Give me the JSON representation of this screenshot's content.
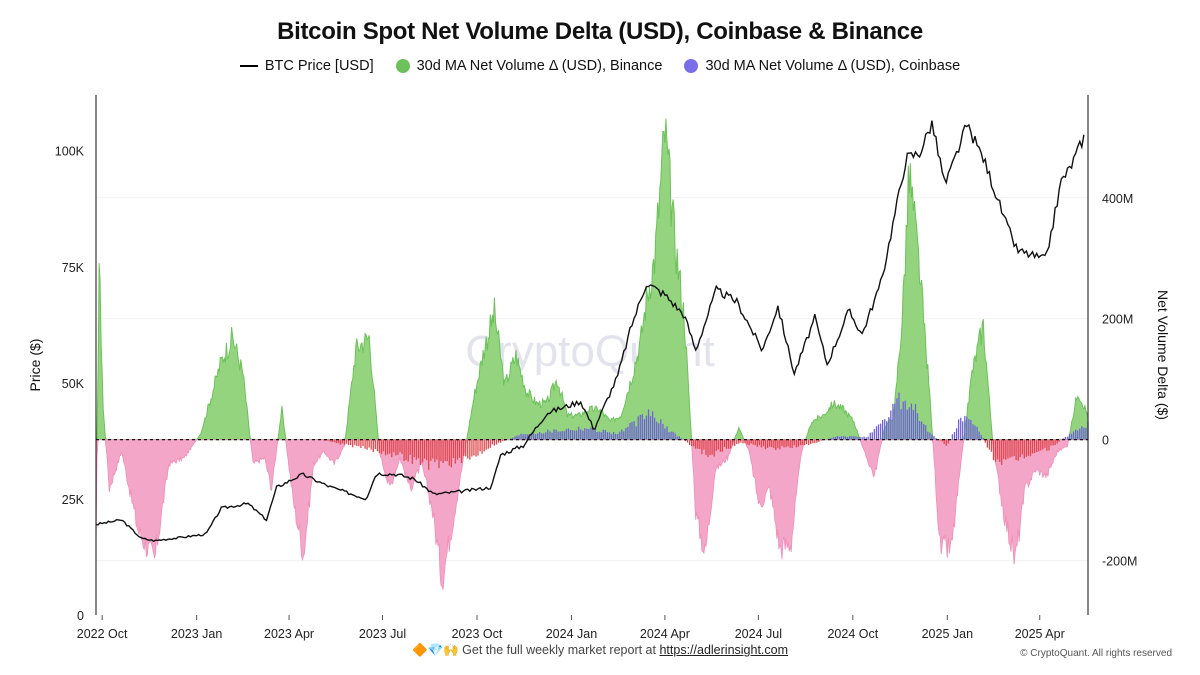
{
  "title": "Bitcoin Spot Net Volume Delta (USD), Coinbase & Binance",
  "legend": [
    {
      "label": "BTC Price [USD]",
      "icon": "line",
      "color": "#111111"
    },
    {
      "label": "30d MA Net Volume Δ (USD), Binance",
      "icon": "dot",
      "color": "#6cc15a"
    },
    {
      "label": "30d MA Net Volume Δ (USD), Coinbase",
      "icon": "dot",
      "color": "#7a6de8"
    }
  ],
  "watermark": "CryptoQuant",
  "footer": {
    "emoji": "🔶💎🙌",
    "text": "Get the full weekly market report at",
    "link": "https://adlerinsight.com"
  },
  "copyright": "© CryptoQuant. All rights reserved",
  "colors": {
    "price": "#111111",
    "binance_pos": "#6cc15a",
    "binance_pos_fill": "#94d47f",
    "binance_neg": "#f4a6c8",
    "coinbase_pos": "#6f62d8",
    "coinbase_neg": "#e0474c"
  },
  "chart_data": {
    "type": "area",
    "x_tick_labels": [
      "2022 Oct",
      "2023 Jan",
      "2023 Apr",
      "2023 Jul",
      "2023 Oct",
      "2024 Jan",
      "2024 Apr",
      "2024 Jul",
      "2024 Oct",
      "2025 Jan",
      "2025 Apr"
    ],
    "y_left": {
      "label": "Price ($)",
      "ticks": [
        0,
        25000,
        50000,
        75000,
        100000
      ],
      "tick_labels": [
        "0",
        "25K",
        "50K",
        "75K",
        "100K"
      ],
      "range": [
        0,
        112000
      ]
    },
    "y_right": {
      "label": "Net Volume Delta ($)",
      "ticks": [
        -200000000,
        0,
        200000000,
        400000000
      ],
      "tick_labels": [
        "-200M",
        "0",
        "200M",
        "400M"
      ],
      "range": [
        -290000000,
        570000000
      ]
    },
    "x_range": [
      "2022-09-25",
      "2025-05-18"
    ],
    "zero_line": "dashed",
    "series": [
      {
        "name": "BTC Price [USD]",
        "axis": "left",
        "x": [
          "2022-09-25",
          "2022-10-20",
          "2022-11-08",
          "2022-11-21",
          "2022-12-20",
          "2023-01-10",
          "2023-01-25",
          "2023-02-20",
          "2023-03-10",
          "2023-03-20",
          "2023-04-14",
          "2023-05-10",
          "2023-06-15",
          "2023-06-25",
          "2023-07-15",
          "2023-08-01",
          "2023-08-20",
          "2023-09-15",
          "2023-10-15",
          "2023-10-24",
          "2023-11-15",
          "2023-12-08",
          "2024-01-10",
          "2024-01-23",
          "2024-02-15",
          "2024-02-28",
          "2024-03-14",
          "2024-04-01",
          "2024-04-20",
          "2024-05-01",
          "2024-05-21",
          "2024-06-10",
          "2024-07-05",
          "2024-07-20",
          "2024-08-05",
          "2024-08-25",
          "2024-09-06",
          "2024-09-27",
          "2024-10-10",
          "2024-10-29",
          "2024-11-12",
          "2024-11-22",
          "2024-12-05",
          "2024-12-17",
          "2024-12-30",
          "2025-01-20",
          "2025-02-05",
          "2025-02-27",
          "2025-03-10",
          "2025-04-07",
          "2025-04-22",
          "2025-05-01",
          "2025-05-15"
        ],
        "values": [
          19500,
          20500,
          16500,
          16000,
          16800,
          17400,
          23000,
          24000,
          20500,
          27500,
          30300,
          27700,
          25000,
          30500,
          30300,
          29300,
          26000,
          26600,
          27500,
          34500,
          36500,
          43500,
          46000,
          40000,
          51500,
          62000,
          71500,
          69000,
          64500,
          57000,
          70000,
          67500,
          57000,
          66500,
          52000,
          64000,
          54000,
          65500,
          60500,
          72000,
          87500,
          98500,
          99500,
          106000,
          92500,
          105500,
          98500,
          84500,
          78500,
          76500,
          93500,
          96500,
          103500
        ]
      },
      {
        "name": "30d MA Net Volume Δ (USD), Binance",
        "axis": "right",
        "x": [
          "2022-09-25",
          "2022-09-28",
          "2022-10-02",
          "2022-10-08",
          "2022-10-20",
          "2022-11-05",
          "2022-11-21",
          "2022-12-05",
          "2022-12-20",
          "2023-01-05",
          "2023-01-15",
          "2023-01-25",
          "2023-02-05",
          "2023-02-15",
          "2023-02-25",
          "2023-03-08",
          "2023-03-15",
          "2023-03-25",
          "2023-04-05",
          "2023-04-15",
          "2023-04-25",
          "2023-05-05",
          "2023-05-15",
          "2023-05-25",
          "2023-06-05",
          "2023-06-18",
          "2023-06-28",
          "2023-07-08",
          "2023-07-18",
          "2023-07-28",
          "2023-08-08",
          "2023-08-18",
          "2023-08-28",
          "2023-09-08",
          "2023-09-18",
          "2023-09-28",
          "2023-10-08",
          "2023-10-18",
          "2023-10-28",
          "2023-11-08",
          "2023-11-18",
          "2023-11-28",
          "2023-12-08",
          "2023-12-18",
          "2023-12-28",
          "2024-01-08",
          "2024-01-18",
          "2024-01-28",
          "2024-02-08",
          "2024-02-18",
          "2024-02-28",
          "2024-03-08",
          "2024-03-14",
          "2024-03-22",
          "2024-04-01",
          "2024-04-10",
          "2024-04-20",
          "2024-05-01",
          "2024-05-10",
          "2024-05-20",
          "2024-06-01",
          "2024-06-12",
          "2024-06-22",
          "2024-07-02",
          "2024-07-12",
          "2024-07-22",
          "2024-08-02",
          "2024-08-12",
          "2024-08-22",
          "2024-09-02",
          "2024-09-12",
          "2024-09-22",
          "2024-10-02",
          "2024-10-12",
          "2024-10-22",
          "2024-11-01",
          "2024-11-10",
          "2024-11-18",
          "2024-11-25",
          "2024-12-05",
          "2024-12-15",
          "2024-12-25",
          "2025-01-05",
          "2025-01-15",
          "2025-01-25",
          "2025-02-05",
          "2025-02-15",
          "2025-02-25",
          "2025-03-08",
          "2025-03-18",
          "2025-03-28",
          "2025-04-08",
          "2025-04-18",
          "2025-04-28",
          "2025-05-08",
          "2025-05-18"
        ],
        "values": [
          -200000000,
          300000000,
          50000000,
          -80000000,
          -20000000,
          -150000000,
          -200000000,
          -40000000,
          -30000000,
          10000000,
          70000000,
          130000000,
          170000000,
          110000000,
          -40000000,
          -30000000,
          -80000000,
          50000000,
          -100000000,
          -190000000,
          -40000000,
          -20000000,
          -40000000,
          -10000000,
          150000000,
          170000000,
          -20000000,
          -80000000,
          -30000000,
          -80000000,
          -40000000,
          -110000000,
          -230000000,
          -130000000,
          -30000000,
          70000000,
          150000000,
          210000000,
          90000000,
          140000000,
          80000000,
          60000000,
          60000000,
          100000000,
          40000000,
          40000000,
          50000000,
          50000000,
          30000000,
          40000000,
          100000000,
          160000000,
          230000000,
          300000000,
          510000000,
          340000000,
          200000000,
          -120000000,
          -190000000,
          -50000000,
          -30000000,
          20000000,
          -20000000,
          -110000000,
          -80000000,
          -180000000,
          -170000000,
          -20000000,
          30000000,
          40000000,
          60000000,
          50000000,
          30000000,
          -20000000,
          -60000000,
          20000000,
          40000000,
          200000000,
          440000000,
          280000000,
          70000000,
          -180000000,
          -180000000,
          -30000000,
          110000000,
          190000000,
          -20000000,
          -120000000,
          -200000000,
          -80000000,
          -50000000,
          -60000000,
          -20000000,
          -10000000,
          80000000,
          40000000
        ]
      },
      {
        "name": "30d MA Net Volume Δ (USD), Coinbase",
        "axis": "right",
        "x": [
          "2022-09-25",
          "2023-05-01",
          "2023-06-01",
          "2023-07-15",
          "2023-08-15",
          "2023-09-20",
          "2023-10-15",
          "2023-11-15",
          "2023-12-15",
          "2024-01-15",
          "2024-02-15",
          "2024-03-05",
          "2024-03-18",
          "2024-04-01",
          "2024-04-15",
          "2024-05-01",
          "2024-05-15",
          "2024-06-15",
          "2024-07-15",
          "2024-08-15",
          "2024-09-15",
          "2024-10-15",
          "2024-11-01",
          "2024-11-15",
          "2024-12-01",
          "2024-12-15",
          "2025-01-01",
          "2025-01-15",
          "2025-02-01",
          "2025-02-15",
          "2025-03-01",
          "2025-03-20",
          "2025-04-10",
          "2025-05-01",
          "2025-05-18"
        ],
        "values": [
          0,
          0,
          -10000000,
          -25000000,
          -40000000,
          -35000000,
          -10000000,
          10000000,
          15000000,
          20000000,
          10000000,
          30000000,
          45000000,
          20000000,
          5000000,
          -15000000,
          -25000000,
          -5000000,
          -15000000,
          -10000000,
          5000000,
          5000000,
          30000000,
          70000000,
          50000000,
          10000000,
          -10000000,
          40000000,
          15000000,
          -30000000,
          -40000000,
          -25000000,
          -15000000,
          10000000,
          25000000
        ]
      }
    ]
  }
}
